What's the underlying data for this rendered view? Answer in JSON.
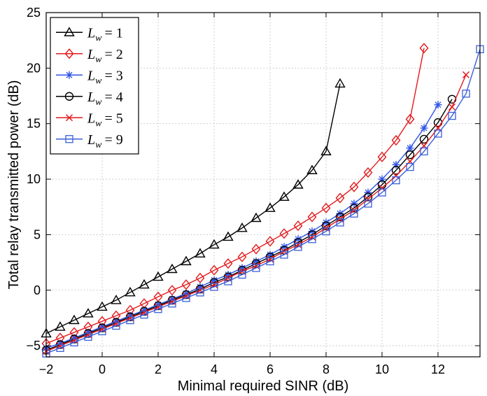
{
  "chart_data": {
    "type": "line",
    "title": "",
    "xlabel": "Minimal required SINR (dB)",
    "ylabel": "Total relay transmitted power (dB)",
    "xlim": [
      -2,
      13.5
    ],
    "ylim": [
      -6,
      25
    ],
    "x_ticks": [
      -2,
      0,
      2,
      4,
      6,
      8,
      10,
      12
    ],
    "x_tick_labels": [
      "−2",
      "0",
      "2",
      "4",
      "6",
      "8",
      "10",
      "12"
    ],
    "y_ticks": [
      -5,
      0,
      5,
      10,
      15,
      20,
      25
    ],
    "y_tick_labels": [
      "−5",
      "0",
      "5",
      "10",
      "15",
      "20",
      "25"
    ],
    "grid": true,
    "legend_position": "top-left",
    "series": [
      {
        "name": "L_w = 1",
        "legend_main": "L",
        "legend_sub": "w",
        "legend_value": "= 1",
        "color": "#000000",
        "marker": "triangle",
        "x": [
          -2,
          -1.5,
          -1,
          -0.5,
          0,
          0.5,
          1,
          1.5,
          2,
          2.5,
          3,
          3.5,
          4,
          4.5,
          5,
          5.5,
          6,
          6.5,
          7,
          7.5,
          8,
          8.5
        ],
        "y": [
          -3.9,
          -3.3,
          -2.7,
          -2.1,
          -1.5,
          -0.9,
          -0.2,
          0.5,
          1.2,
          1.9,
          2.6,
          3.3,
          4.1,
          4.8,
          5.6,
          6.5,
          7.4,
          8.4,
          9.5,
          10.8,
          12.5,
          18.6
        ]
      },
      {
        "name": "L_w = 2",
        "legend_main": "L",
        "legend_sub": "w",
        "legend_value": "= 2",
        "color": "#e41a1c",
        "marker": "diamond",
        "x": [
          -2,
          -1.5,
          -1,
          -0.5,
          0,
          0.5,
          1,
          1.5,
          2,
          2.5,
          3,
          3.5,
          4,
          4.5,
          5,
          5.5,
          6,
          6.5,
          7,
          7.5,
          8,
          8.5,
          9,
          9.5,
          10,
          10.5,
          11,
          11.5
        ],
        "y": [
          -4.8,
          -4.3,
          -3.8,
          -3.3,
          -2.8,
          -2.3,
          -1.8,
          -1.2,
          -0.6,
          0.0,
          0.5,
          1.1,
          1.8,
          2.4,
          3.0,
          3.7,
          4.4,
          5.1,
          5.8,
          6.6,
          7.4,
          8.3,
          9.3,
          10.6,
          12.0,
          13.5,
          15.4,
          21.8
        ]
      },
      {
        "name": "L_w = 3",
        "legend_main": "L",
        "legend_sub": "w",
        "legend_value": "= 3",
        "color": "#2f54e8",
        "marker": "asterisk",
        "x": [
          -2,
          -1.5,
          -1,
          -0.5,
          0,
          0.5,
          1,
          1.5,
          2,
          2.5,
          3,
          3.5,
          4,
          4.5,
          5,
          5.5,
          6,
          6.5,
          7,
          7.5,
          8,
          8.5,
          9,
          9.5,
          10,
          10.5,
          11,
          11.5,
          12
        ],
        "y": [
          -5.2,
          -4.8,
          -4.3,
          -3.8,
          -3.3,
          -2.8,
          -2.3,
          -1.8,
          -1.3,
          -0.8,
          -0.3,
          0.3,
          0.9,
          1.4,
          2.0,
          2.6,
          3.2,
          3.9,
          4.6,
          5.3,
          6.1,
          6.9,
          7.8,
          8.8,
          10.0,
          11.3,
          12.8,
          14.6,
          16.7
        ]
      },
      {
        "name": "L_w = 4",
        "legend_main": "L",
        "legend_sub": "w",
        "legend_value": "= 4",
        "color": "#000000",
        "marker": "circle",
        "x": [
          -2,
          -1.5,
          -1,
          -0.5,
          0,
          0.5,
          1,
          1.5,
          2,
          2.5,
          3,
          3.5,
          4,
          4.5,
          5,
          5.5,
          6,
          6.5,
          7,
          7.5,
          8,
          8.5,
          9,
          9.5,
          10,
          10.5,
          11,
          11.5,
          12,
          12.5
        ],
        "y": [
          -5.4,
          -4.9,
          -4.4,
          -3.9,
          -3.4,
          -2.9,
          -2.4,
          -1.9,
          -1.4,
          -0.9,
          -0.4,
          0.1,
          0.7,
          1.2,
          1.8,
          2.4,
          3.0,
          3.6,
          4.3,
          5.0,
          5.8,
          6.6,
          7.4,
          8.4,
          9.5,
          10.8,
          12.2,
          13.6,
          15.1,
          17.2
        ]
      },
      {
        "name": "L_w = 5",
        "legend_main": "L",
        "legend_sub": "w",
        "legend_value": "= 5",
        "color": "#e41a1c",
        "marker": "x",
        "x": [
          -2,
          -1.5,
          -1,
          -0.5,
          0,
          0.5,
          1,
          1.5,
          2,
          2.5,
          3,
          3.5,
          4,
          4.5,
          5,
          5.5,
          6,
          6.5,
          7,
          7.5,
          8,
          8.5,
          9,
          9.5,
          10,
          10.5,
          11,
          11.5,
          12,
          12.5,
          13
        ],
        "y": [
          -5.5,
          -5.0,
          -4.5,
          -4.0,
          -3.5,
          -3.0,
          -2.5,
          -2.0,
          -1.5,
          -1.0,
          -0.5,
          0.0,
          0.5,
          1.1,
          1.7,
          2.2,
          2.8,
          3.5,
          4.1,
          4.8,
          5.6,
          6.4,
          7.2,
          8.2,
          9.2,
          10.3,
          11.6,
          13.0,
          14.6,
          16.5,
          19.4
        ]
      },
      {
        "name": "L_w = 9",
        "legend_main": "L",
        "legend_sub": "w",
        "legend_value": "= 9",
        "color": "#3a5fd9",
        "marker": "square",
        "x": [
          -2,
          -1.5,
          -1,
          -0.5,
          0,
          0.5,
          1,
          1.5,
          2,
          2.5,
          3,
          3.5,
          4,
          4.5,
          5,
          5.5,
          6,
          6.5,
          7,
          7.5,
          8,
          8.5,
          9,
          9.5,
          10,
          10.5,
          11,
          11.5,
          12,
          12.5,
          13,
          13.5
        ],
        "y": [
          -5.7,
          -5.2,
          -4.7,
          -4.2,
          -3.7,
          -3.2,
          -2.7,
          -2.2,
          -1.7,
          -1.2,
          -0.7,
          -0.2,
          0.3,
          0.8,
          1.4,
          2.0,
          2.6,
          3.2,
          3.9,
          4.6,
          5.3,
          6.1,
          6.9,
          7.8,
          8.8,
          9.9,
          11.1,
          12.5,
          14.1,
          15.7,
          17.7,
          21.7
        ]
      }
    ]
  }
}
